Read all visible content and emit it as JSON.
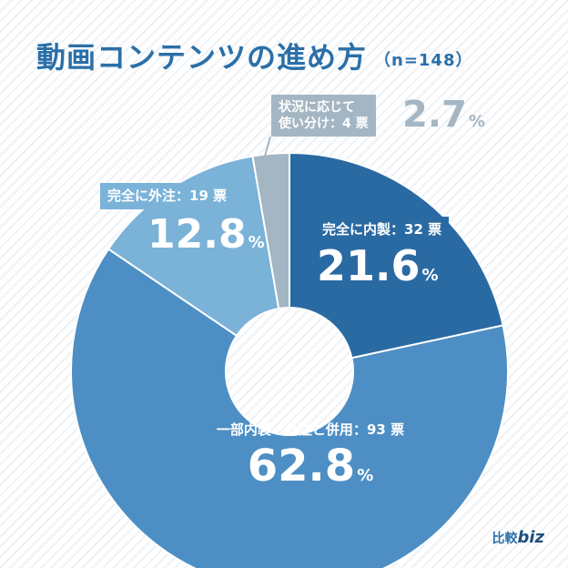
{
  "chart_data": {
    "type": "pie",
    "variant": "donut",
    "title": "動画コンテンツの進め方",
    "subtitle": "（n=148）",
    "unit": "%",
    "count_unit": "票",
    "slices": [
      {
        "label": "完全に内製",
        "count": 32,
        "percent": 21.6,
        "color": "#2a6aa3"
      },
      {
        "label": "一部内製・外注と併用",
        "count": 93,
        "percent": 62.8,
        "color": "#4d8fc4"
      },
      {
        "label": "完全に外注",
        "count": 19,
        "percent": 12.8,
        "color": "#7ab2d8"
      },
      {
        "label_lines": [
          "状況に応じて",
          "使い分け"
        ],
        "count": 4,
        "percent": 2.7,
        "color": "#a4b6c3"
      }
    ],
    "start_angle_deg": 0,
    "direction": "clockwise",
    "legend": "none",
    "grid": false,
    "background_color": "#f5f8fb"
  },
  "brand": {
    "prefix": "比較",
    "name": "biz"
  }
}
